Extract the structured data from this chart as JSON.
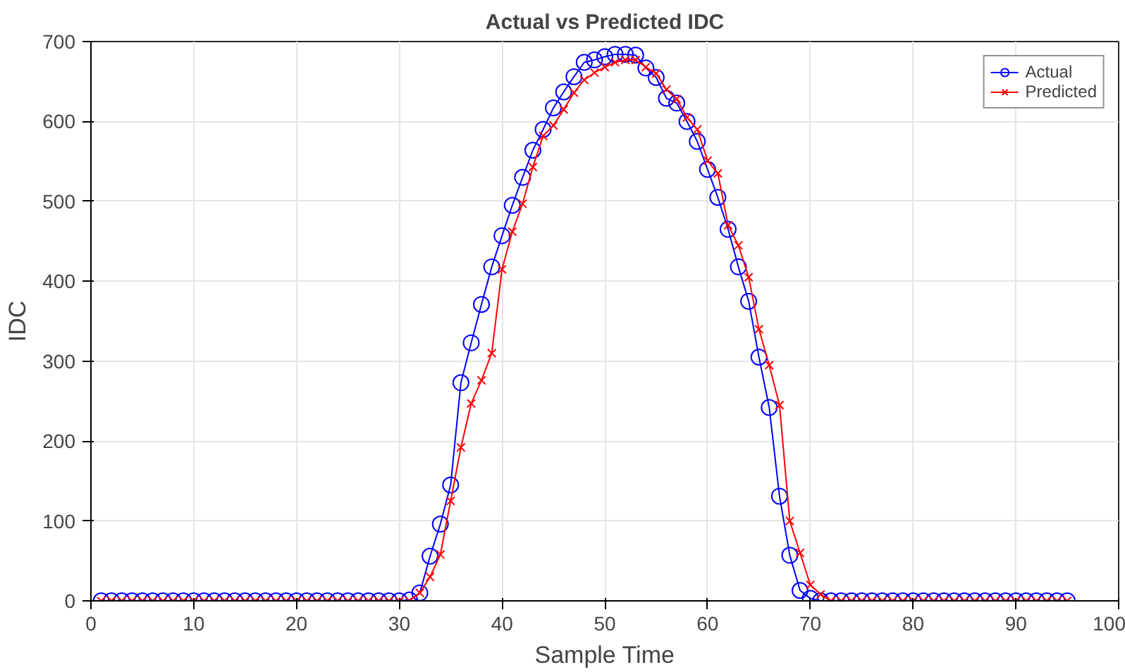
{
  "chart_data": {
    "type": "line",
    "title": "Actual vs Predicted IDC",
    "xlabel": "Sample Time",
    "ylabel": "IDC",
    "x": [
      1,
      2,
      3,
      4,
      5,
      6,
      7,
      8,
      9,
      10,
      11,
      12,
      13,
      14,
      15,
      16,
      17,
      18,
      19,
      20,
      21,
      22,
      23,
      24,
      25,
      26,
      27,
      28,
      29,
      30,
      31,
      32,
      33,
      34,
      35,
      36,
      37,
      38,
      39,
      40,
      41,
      42,
      43,
      44,
      45,
      46,
      47,
      48,
      49,
      50,
      51,
      52,
      53,
      54,
      55,
      56,
      57,
      58,
      59,
      60,
      61,
      62,
      63,
      64,
      65,
      66,
      67,
      68,
      69,
      70,
      71,
      72,
      73,
      74,
      75,
      76,
      77,
      78,
      79,
      80,
      81,
      82,
      83,
      84,
      85,
      86,
      87,
      88,
      89,
      90,
      91,
      92,
      93,
      94,
      95
    ],
    "series": [
      {
        "name": "Actual",
        "color": "#0000ff",
        "marker": "circle",
        "values": [
          0,
          0,
          0,
          0,
          0,
          0,
          0,
          0,
          0,
          0,
          0,
          0,
          0,
          0,
          0,
          0,
          0,
          0,
          0,
          0,
          0,
          0,
          0,
          0,
          0,
          0,
          0,
          0,
          0,
          0,
          1,
          10,
          56,
          96,
          145,
          273,
          323,
          371,
          418,
          457,
          495,
          530,
          564,
          590,
          617,
          637,
          656,
          674,
          677,
          681,
          684,
          684,
          683,
          667,
          655,
          629,
          623,
          600,
          575,
          540,
          505,
          465,
          418,
          375,
          305,
          242,
          131,
          57,
          13,
          3,
          0,
          0,
          0,
          0,
          0,
          0,
          0,
          0,
          0,
          0,
          0,
          0,
          0,
          0,
          0,
          0,
          0,
          0,
          0,
          0,
          0,
          0,
          0,
          0,
          0
        ]
      },
      {
        "name": "Predicted",
        "color": "#ff0000",
        "marker": "cross",
        "values": [
          0,
          0,
          0,
          0,
          0,
          0,
          0,
          0,
          0,
          0,
          0,
          0,
          0,
          0,
          0,
          0,
          0,
          0,
          0,
          0,
          0,
          0,
          0,
          0,
          0,
          0,
          0,
          0,
          0,
          0,
          0,
          10,
          30,
          58,
          125,
          192,
          247,
          276,
          310,
          415,
          462,
          497,
          543,
          582,
          595,
          615,
          636,
          652,
          661,
          668,
          674,
          677,
          677,
          668,
          660,
          640,
          628,
          605,
          590,
          551,
          535,
          470,
          445,
          405,
          340,
          295,
          245,
          100,
          60,
          20,
          8,
          0,
          0,
          0,
          0,
          0,
          0,
          0,
          0,
          0,
          0,
          0,
          0,
          0,
          0,
          0,
          0,
          0,
          0,
          0,
          0,
          0,
          0,
          0,
          0
        ]
      }
    ],
    "xlim": [
      0,
      100
    ],
    "xticks": [
      0,
      10,
      20,
      30,
      40,
      50,
      60,
      70,
      80,
      90,
      100
    ],
    "ylim": [
      0,
      700
    ],
    "yticks": [
      0,
      100,
      200,
      300,
      400,
      500,
      600,
      700
    ],
    "grid": true,
    "legend": "top right",
    "line_style": "solid"
  }
}
